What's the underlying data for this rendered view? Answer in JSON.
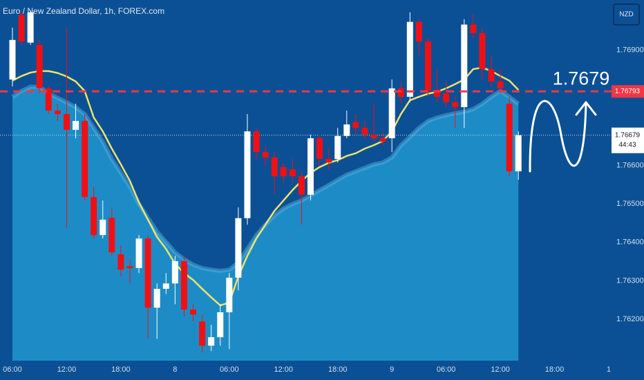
{
  "chart_data": {
    "type": "candlestick",
    "title": "Euro / New Zealand Dollar, 1h, FOREX.com",
    "currency": "NZD",
    "background": "#0b5095",
    "up_color": "#ffffff",
    "down_color": "#f20f14",
    "categories": [
      "06:00",
      null,
      null,
      null,
      null,
      null,
      "12:00",
      null,
      null,
      null,
      null,
      null,
      "18:00",
      null,
      null,
      null,
      null,
      null,
      "8",
      null,
      null,
      null,
      null,
      null,
      "06:00",
      null,
      null,
      null,
      null,
      null,
      "12:00",
      null,
      null,
      null,
      null,
      null,
      "18:00",
      null,
      null,
      null,
      null,
      null,
      "9",
      null,
      null,
      null,
      null,
      null,
      "06:00",
      null,
      null,
      null,
      null,
      null,
      "12:00",
      null,
      null,
      null,
      null,
      null,
      "18:00",
      null,
      null,
      null,
      null,
      null,
      "1"
    ],
    "open": [
      1.76824,
      1.76992,
      1.7692,
      1.76914,
      1.76801,
      1.76743,
      1.76734,
      1.76693,
      1.76716,
      1.76518,
      1.76419,
      1.76464,
      1.76369,
      1.76338,
      1.76333,
      1.7641,
      1.7623,
      1.76279,
      1.76293,
      1.76351,
      1.76225,
      1.76194,
      1.76131,
      1.76153,
      1.76218,
      1.76308,
      1.76463,
      1.76689,
      1.76635,
      1.76621,
      1.76596,
      1.7659,
      1.76572,
      1.76524,
      1.76671,
      1.76617,
      1.76617,
      1.76677,
      1.76713,
      1.76698,
      1.7668,
      1.76671,
      1.76671,
      1.76801,
      1.76779,
      1.76974,
      1.76923,
      1.76797,
      1.76788,
      1.76765,
      1.76752,
      1.76967,
      1.76945,
      1.76851,
      1.76819,
      1.76761,
      1.76585,
      null,
      null,
      null,
      null,
      null,
      null,
      null,
      null,
      null,
      null
    ],
    "high": [
      1.76959,
      1.76999,
      1.77004,
      1.76927,
      1.76806,
      1.76761,
      1.76959,
      1.76761,
      1.76734,
      1.76545,
      1.76509,
      1.76491,
      1.76392,
      1.76356,
      1.76419,
      1.76419,
      1.76293,
      1.7632,
      1.76365,
      1.76365,
      1.76239,
      1.76212,
      1.76185,
      1.76239,
      1.7632,
      1.76491,
      1.76734,
      1.76698,
      1.76653,
      1.76635,
      1.76608,
      1.76617,
      1.76585,
      1.7668,
      1.7668,
      1.76644,
      1.76698,
      1.76743,
      1.76734,
      1.76716,
      1.76761,
      1.76689,
      1.76824,
      1.76819,
      1.76999,
      1.76981,
      1.76932,
      1.76851,
      1.76819,
      1.76779,
      1.76981,
      1.76995,
      1.76959,
      1.76887,
      1.76851,
      1.76779,
      1.76689,
      null,
      null,
      null,
      null,
      null,
      null,
      null,
      null,
      null,
      null
    ],
    "low": [
      1.76806,
      1.76914,
      1.76914,
      1.76788,
      1.76734,
      1.76716,
      1.76437,
      1.76671,
      1.76509,
      1.7641,
      1.7641,
      1.76365,
      1.76311,
      1.76293,
      1.7632,
      1.76149,
      1.76149,
      1.76266,
      1.76239,
      1.76207,
      1.76194,
      1.76113,
      1.76117,
      1.76131,
      1.76122,
      1.76275,
      1.76446,
      1.76617,
      1.76599,
      1.76527,
      1.76554,
      1.76554,
      1.76446,
      1.76509,
      1.76599,
      1.7659,
      1.76608,
      1.76671,
      1.7668,
      1.76671,
      1.76662,
      1.76653,
      1.76635,
      1.76761,
      1.76765,
      1.76887,
      1.76779,
      1.76765,
      1.76752,
      1.76698,
      1.76698,
      1.76932,
      1.76824,
      1.76806,
      1.76788,
      1.76572,
      1.76563,
      null,
      null,
      null,
      null,
      null,
      null,
      null,
      null,
      null,
      null
    ],
    "close": [
      1.76927,
      1.76923,
      1.76999,
      1.76801,
      1.76743,
      1.76734,
      1.76693,
      1.76716,
      1.76518,
      1.76419,
      1.76459,
      1.76374,
      1.76329,
      1.76333,
      1.7641,
      1.7623,
      1.76279,
      1.76293,
      1.76351,
      1.76225,
      1.76212,
      1.76131,
      1.76153,
      1.76218,
      1.76308,
      1.76463,
      1.76689,
      1.76635,
      1.76621,
      1.76572,
      1.76572,
      1.76572,
      1.76524,
      1.76671,
      1.76617,
      1.76608,
      1.76677,
      1.76707,
      1.76698,
      1.7668,
      1.76671,
      1.76662,
      1.76801,
      1.76779,
      1.76974,
      1.76923,
      1.76794,
      1.76779,
      1.76765,
      1.76752,
      1.76967,
      1.76945,
      1.76851,
      1.76819,
      1.76801,
      1.76585,
      1.76679,
      null,
      null,
      null,
      null,
      null,
      null,
      null,
      null,
      null,
      null
    ],
    "indicators": [
      {
        "type": "area",
        "color": "#1d8cc6",
        "edge_color": "#5ab4e0",
        "values": [
          1.76779,
          1.76794,
          1.76805,
          1.76805,
          1.76788,
          1.76776,
          1.76765,
          1.76752,
          1.76734,
          1.76698,
          1.76662,
          1.76617,
          1.76581,
          1.76545,
          1.765,
          1.76464,
          1.76428,
          1.76401,
          1.76374,
          1.76356,
          1.76342,
          1.76333,
          1.76329,
          1.76326,
          1.76329,
          1.76347,
          1.76383,
          1.76419,
          1.76446,
          1.7647,
          1.76488,
          1.765,
          1.76509,
          1.76522,
          1.76536,
          1.76549,
          1.76563,
          1.76576,
          1.76585,
          1.76594,
          1.76603,
          1.76608,
          1.76621,
          1.76653,
          1.76675,
          1.76698,
          1.76716,
          1.76725,
          1.76731,
          1.76736,
          1.7674,
          1.76747,
          1.76761,
          1.76779,
          1.76794,
          1.76779,
          1.76761,
          null,
          null,
          null,
          null,
          null,
          null,
          null,
          null,
          null,
          null
        ]
      },
      {
        "type": "line",
        "color": "#eee36a",
        "values": [
          1.76821,
          1.76833,
          1.76842,
          1.76846,
          1.76846,
          1.76841,
          1.76832,
          1.76819,
          1.76794,
          1.76725,
          1.76689,
          1.76644,
          1.76603,
          1.7656,
          1.76504,
          1.76459,
          1.76414,
          1.76383,
          1.76344,
          1.7632,
          1.76302,
          1.76279,
          1.76257,
          1.76236,
          1.76243,
          1.76311,
          1.76365,
          1.7641,
          1.76446,
          1.76482,
          1.76509,
          1.76536,
          1.7656,
          1.76581,
          1.76596,
          1.76607,
          1.76614,
          1.76625,
          1.76632,
          1.76644,
          1.76653,
          1.76664,
          1.76689,
          1.76734,
          1.7677,
          1.76779,
          1.76787,
          1.76792,
          1.76801,
          1.76812,
          1.76824,
          1.76851,
          1.76855,
          1.76846,
          1.76833,
          1.76821,
          1.76797,
          null,
          null,
          null,
          null,
          null,
          null,
          null,
          null,
          null,
          null
        ]
      }
    ],
    "target_line": 1.76793,
    "target_annotation": 1.7679,
    "last_price": 1.76679,
    "countdown": "44:43",
    "ylim": [
      1.76092,
      1.77031
    ],
    "yticks": [
      {
        "value": 1.769,
        "label": "1.76900"
      },
      {
        "value": 1.766,
        "label": "1.76600"
      },
      {
        "value": 1.765,
        "label": "1.76500"
      },
      {
        "value": 1.764,
        "label": "1.76400"
      },
      {
        "value": 1.763,
        "label": "1.76300"
      },
      {
        "value": 1.762,
        "label": "1.76200"
      }
    ]
  }
}
